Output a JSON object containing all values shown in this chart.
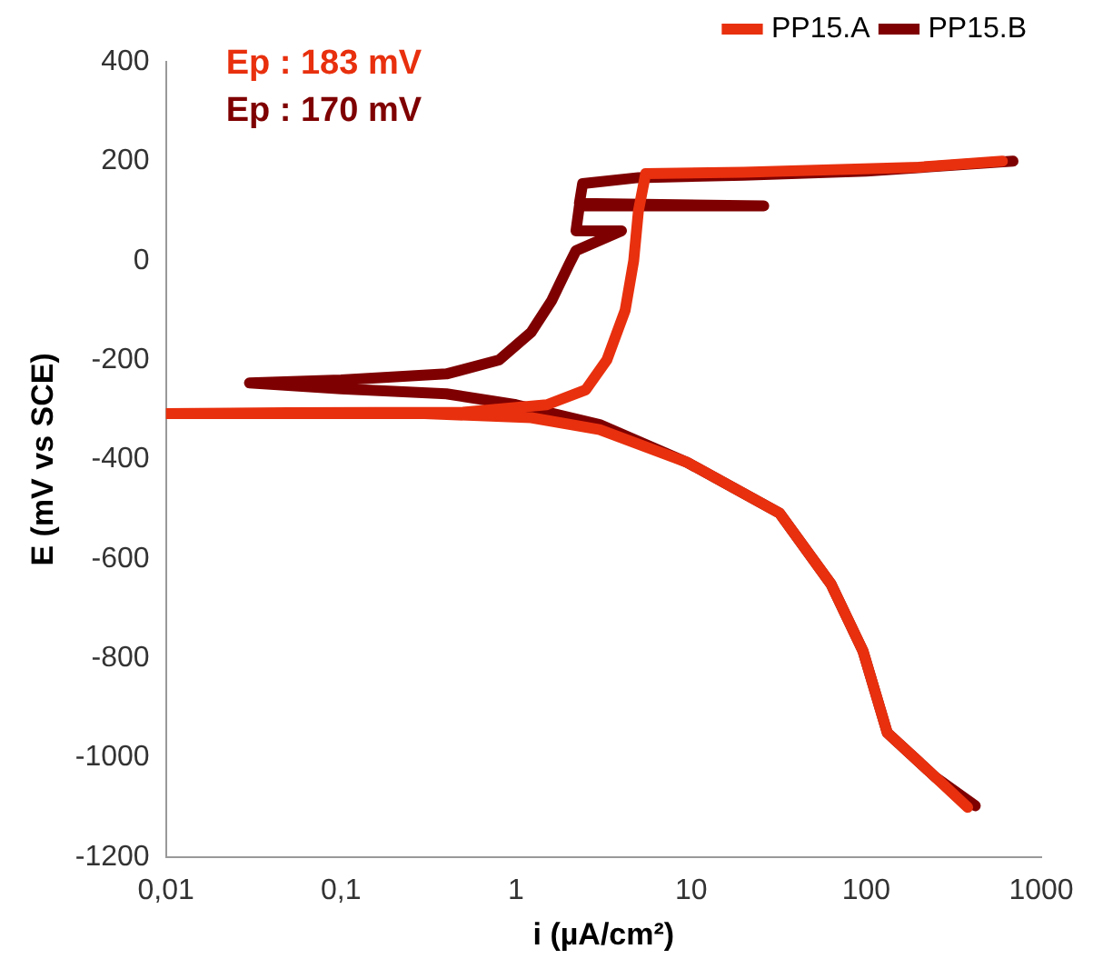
{
  "chart_data": {
    "type": "line",
    "xlabel": "i (µA/cm²)",
    "ylabel": "E (mV vs SCE)",
    "log": "x",
    "marker": "none",
    "line_style": "solid",
    "grid": false,
    "legend": "top right",
    "xlim": [
      0.01,
      1000
    ],
    "xticks": [
      {
        "value": 0.01,
        "label": "0,01"
      },
      {
        "value": 0.1,
        "label": "0,1"
      },
      1,
      10,
      100,
      1000
    ],
    "ylim": [
      -1200,
      400
    ],
    "yticks": [
      -1200,
      -1000,
      -800,
      -600,
      -400,
      -200,
      0,
      200,
      400
    ],
    "annotations": [
      "Ep : 183 mV",
      "Ep : 170 mV"
    ],
    "series": [
      {
        "name": "PP15.A",
        "color": "#e8300e",
        "x": [
          380,
          250,
          132,
          96,
          63,
          32,
          9.5,
          3,
          1.22,
          0.3,
          0.05,
          0.01,
          0.05,
          0.5,
          1.5,
          2.5,
          3.3,
          4.2,
          4.7,
          5,
          5.5,
          20,
          200,
          600
        ],
        "values": [
          -1100,
          -1040,
          -950,
          -786,
          -651,
          -508,
          -406,
          -340,
          -316,
          -308,
          -308,
          -308,
          -306,
          -305,
          -290,
          -260,
          -200,
          -100,
          0,
          100,
          175,
          178,
          188,
          200
        ]
      },
      {
        "name": "PP15.B",
        "color": "#7f0000",
        "x": [
          420,
          250,
          132,
          96,
          63,
          32,
          9.5,
          3,
          1,
          0.4,
          0.1,
          0.03,
          0.1,
          0.4,
          0.8,
          1.22,
          1.6,
          2,
          2.2,
          4,
          2.2,
          2.3,
          26,
          2.3,
          2.4,
          5,
          20,
          100,
          690
        ],
        "values": [
          -1097,
          -1040,
          -950,
          -786,
          -651,
          -508,
          -406,
          -330,
          -290,
          -268,
          -258,
          -246,
          -240,
          -228,
          -200,
          -144,
          -80,
          -9,
          20,
          60,
          60,
          110,
          110,
          115,
          155,
          167,
          172,
          180,
          200
        ]
      }
    ]
  }
}
